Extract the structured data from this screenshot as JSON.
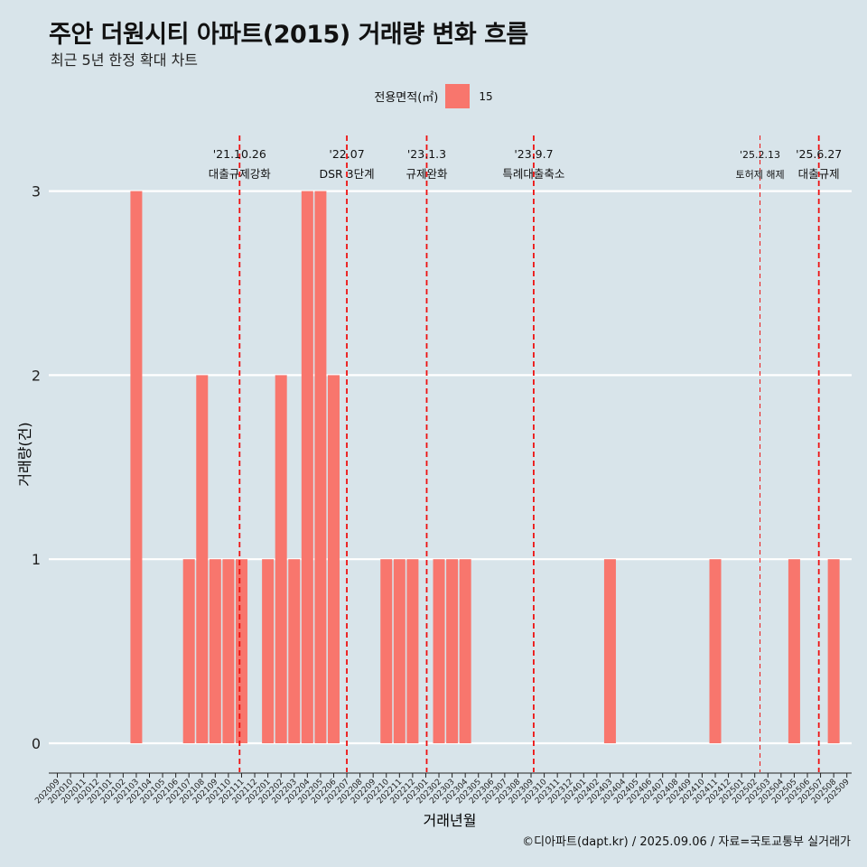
{
  "title": "주안 더원시티 아파트(2015) 거래량 변화 흐름",
  "subtitle": "최근 5년 한정 확대 차트",
  "caption": "©디아파트(dapt.kr) / 2025.09.06 / 자료=국토교통부 실거래가",
  "colors": {
    "background": "#d8e4ea",
    "bar": "#f8766d",
    "event_line": "#ee1111",
    "grid": "#ffffff"
  },
  "chart_data": {
    "type": "bar",
    "xlabel": "거래년월",
    "ylabel": "거래량(건)",
    "ylim": [
      0,
      3
    ],
    "yticks": [
      0,
      1,
      2,
      3
    ],
    "legend": {
      "title": "전용면적(㎡)",
      "entries": [
        "15"
      ],
      "position": "top"
    },
    "categories": [
      "202009",
      "202010",
      "202011",
      "202012",
      "202101",
      "202102",
      "202103",
      "202104",
      "202105",
      "202106",
      "202107",
      "202108",
      "202109",
      "202110",
      "202111",
      "202112",
      "202201",
      "202202",
      "202203",
      "202204",
      "202205",
      "202206",
      "202207",
      "202208",
      "202209",
      "202210",
      "202211",
      "202212",
      "202301",
      "202302",
      "202303",
      "202304",
      "202305",
      "202306",
      "202307",
      "202308",
      "202309",
      "202310",
      "202311",
      "202312",
      "202401",
      "202402",
      "202403",
      "202404",
      "202405",
      "202406",
      "202407",
      "202408",
      "202409",
      "202410",
      "202411",
      "202412",
      "202501",
      "202502",
      "202503",
      "202504",
      "202505",
      "202506",
      "202507",
      "202508",
      "202509"
    ],
    "series": [
      {
        "name": "15",
        "values": [
          0,
          0,
          0,
          0,
          0,
          0,
          3,
          0,
          0,
          0,
          1,
          2,
          1,
          1,
          1,
          0,
          1,
          2,
          1,
          3,
          3,
          2,
          0,
          0,
          0,
          1,
          1,
          1,
          0,
          1,
          1,
          1,
          0,
          0,
          0,
          0,
          0,
          0,
          0,
          0,
          0,
          0,
          1,
          0,
          0,
          0,
          0,
          0,
          0,
          0,
          1,
          0,
          0,
          0,
          0,
          0,
          1,
          0,
          0,
          1,
          0
        ]
      }
    ],
    "events": [
      {
        "date": "'21.10.26",
        "label": "대출규제강화",
        "month": "202110",
        "offset": 0.85,
        "style": "major"
      },
      {
        "date": "'22.07",
        "label": "DSR 3단계",
        "month": "202207",
        "offset": 0.0,
        "style": "major"
      },
      {
        "date": "'23.1.3",
        "label": "규제완화",
        "month": "202301",
        "offset": 0.07,
        "style": "major"
      },
      {
        "date": "'23.9.7",
        "label": "특례대출축소",
        "month": "202309",
        "offset": 0.2,
        "style": "major"
      },
      {
        "date": "'25.2.13",
        "label": "토허제 해제",
        "month": "202502",
        "offset": 0.4,
        "style": "minor"
      },
      {
        "date": "'25.6.27",
        "label": "대출규제",
        "month": "202506",
        "offset": 0.87,
        "style": "major"
      }
    ]
  }
}
